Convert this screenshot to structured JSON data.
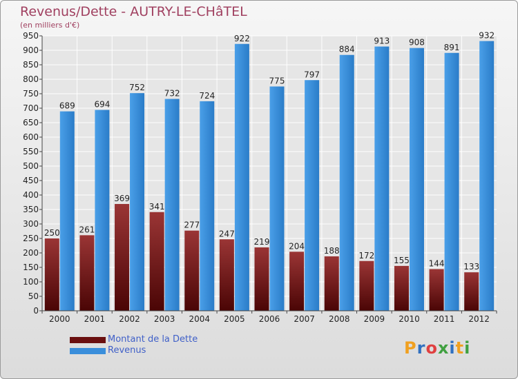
{
  "header": {
    "title": "Revenus/Dette - AUTRY-LE-CHâTEL",
    "subtitle": "(en milliers d'€)"
  },
  "chart_data": {
    "type": "bar",
    "categories": [
      "2000",
      "2001",
      "2002",
      "2003",
      "2004",
      "2005",
      "2006",
      "2007",
      "2008",
      "2009",
      "2010",
      "2011",
      "2012"
    ],
    "series": [
      {
        "name": "Montant de la Dette",
        "values": [
          250,
          261,
          369,
          341,
          277,
          247,
          219,
          204,
          188,
          172,
          155,
          144,
          133
        ],
        "color": "#7a1a1a"
      },
      {
        "name": "Revenus",
        "values": [
          689,
          694,
          752,
          732,
          724,
          922,
          775,
          797,
          884,
          913,
          908,
          891,
          932
        ],
        "color": "#3a8edb"
      }
    ],
    "ylim": [
      0,
      950
    ],
    "ytick_step": 50,
    "grid": true,
    "legend_position": "bottom-left"
  },
  "legend": {
    "items": [
      {
        "label": "Montant de la Dette",
        "color": "#6a0f0f"
      },
      {
        "label": "Revenus",
        "color": "#3a8edb"
      }
    ]
  },
  "logo": {
    "letters": [
      "P",
      "r",
      "o",
      "x",
      "i",
      "t",
      "i"
    ],
    "colors": [
      "#f0a020",
      "#3070c0",
      "#e04040",
      "#40a040",
      "#3070c0",
      "#f0a020",
      "#40a040"
    ]
  }
}
